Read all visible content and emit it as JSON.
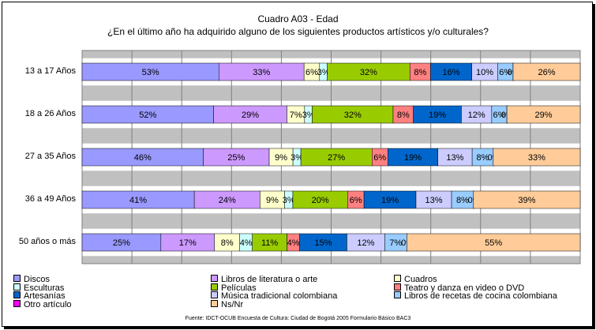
{
  "chart_data": {
    "type": "bar",
    "orientation": "horizontal",
    "stacked": true,
    "normalized_100": true,
    "title": "Cuadro A03 - Edad",
    "subtitle": "¿En el último año ha adquirido alguno de los siguientes productos artísticos y/o culturales?",
    "categories": [
      "13 a 17 Años",
      "18 a 26 Años",
      "27 a 35 Años",
      "36 a 49 Años",
      "50 años o más"
    ],
    "grid": true,
    "legend_position": "bottom",
    "series": [
      {
        "name": "Discos",
        "color": "#9999ff",
        "values": [
          53,
          52,
          46,
          41,
          25
        ]
      },
      {
        "name": "Libros de literatura o arte",
        "color": "#cc99ff",
        "values": [
          33,
          29,
          25,
          24,
          17
        ]
      },
      {
        "name": "Cuadros",
        "color": "#ffffcc",
        "values": [
          6,
          7,
          9,
          9,
          8
        ]
      },
      {
        "name": "Esculturas",
        "color": "#ccffff",
        "values": [
          3,
          3,
          3,
          3,
          4
        ]
      },
      {
        "name": "Películas",
        "color": "#99cc00",
        "values": [
          32,
          32,
          27,
          20,
          11
        ]
      },
      {
        "name": "Teatro y danza en video o DVD",
        "color": "#ff8080",
        "values": [
          8,
          8,
          6,
          6,
          4
        ]
      },
      {
        "name": "Artesanías",
        "color": "#0066cc",
        "values": [
          16,
          19,
          19,
          19,
          15
        ]
      },
      {
        "name": "Música tradicional colombiana",
        "color": "#ccccff",
        "values": [
          10,
          12,
          13,
          13,
          12
        ]
      },
      {
        "name": "Libros de recetas de cocina colombiana",
        "color": "#99ccff",
        "values": [
          6,
          6,
          8,
          8,
          7
        ]
      },
      {
        "name": "Otro artículo",
        "color": "#ff00ff",
        "values": [
          0,
          0,
          0,
          0,
          0
        ]
      },
      {
        "name": "Ns/Nr",
        "color": "#ffcc99",
        "values": [
          26,
          29,
          33,
          39,
          55
        ]
      }
    ],
    "label_suffix": "%"
  },
  "source_note": "Fuente: IDCT-OCUB Encuesta de Cultura: Ciudad de Bogotá 2005 Formulario Básico BAC3"
}
